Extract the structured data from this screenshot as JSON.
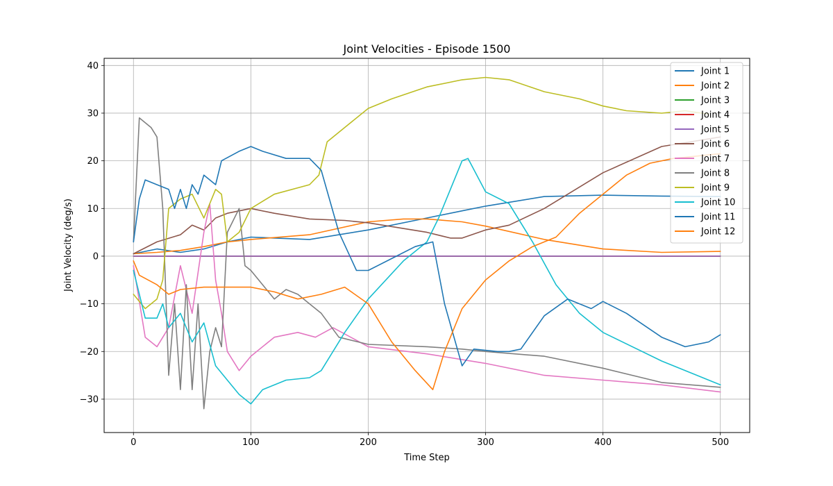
{
  "chart_data": {
    "type": "line",
    "title": "Joint Velocities - Episode 1500",
    "xlabel": "Time Step",
    "ylabel": "Joint Velocity (deg/s)",
    "xlim": [
      -25,
      525
    ],
    "ylim": [
      -37,
      41.5
    ],
    "xticks": [
      0,
      100,
      200,
      300,
      400,
      500
    ],
    "yticks": [
      -30,
      -20,
      -10,
      0,
      10,
      20,
      30,
      40
    ],
    "grid": true,
    "legend_position": "upper right",
    "series": [
      {
        "name": "Joint 1",
        "color": "#1f77b4",
        "points": [
          [
            0,
            0.5
          ],
          [
            20,
            1.5
          ],
          [
            40,
            0.8
          ],
          [
            60,
            1.5
          ],
          [
            80,
            3
          ],
          [
            100,
            4
          ],
          [
            150,
            3.5
          ],
          [
            200,
            5.5
          ],
          [
            250,
            8
          ],
          [
            280,
            9.5
          ],
          [
            300,
            10.5
          ],
          [
            350,
            12.5
          ],
          [
            400,
            12.8
          ],
          [
            450,
            12.6
          ],
          [
            500,
            12.5
          ]
        ]
      },
      {
        "name": "Joint 2",
        "color": "#ff7f0e",
        "points": [
          [
            0,
            0.5
          ],
          [
            20,
            0.8
          ],
          [
            40,
            1.2
          ],
          [
            60,
            2
          ],
          [
            80,
            3
          ],
          [
            100,
            3.5
          ],
          [
            150,
            4.5
          ],
          [
            200,
            7.2
          ],
          [
            230,
            7.8
          ],
          [
            250,
            7.8
          ],
          [
            280,
            7.2
          ],
          [
            300,
            6.3
          ],
          [
            350,
            3.5
          ],
          [
            400,
            1.5
          ],
          [
            450,
            0.8
          ],
          [
            500,
            1
          ]
        ]
      },
      {
        "name": "Joint 3",
        "color": "#2ca02c",
        "points": [
          [
            0,
            0
          ],
          [
            500,
            0
          ]
        ]
      },
      {
        "name": "Joint 4",
        "color": "#d62728",
        "points": [
          [
            0,
            0
          ],
          [
            500,
            0
          ]
        ]
      },
      {
        "name": "Joint 5",
        "color": "#9467bd",
        "points": [
          [
            0,
            0
          ],
          [
            500,
            0
          ]
        ]
      },
      {
        "name": "Joint 6",
        "color": "#8c564b",
        "points": [
          [
            0,
            0.5
          ],
          [
            20,
            3
          ],
          [
            40,
            4.5
          ],
          [
            50,
            6.5
          ],
          [
            60,
            5.5
          ],
          [
            70,
            8
          ],
          [
            80,
            9
          ],
          [
            100,
            10
          ],
          [
            120,
            9
          ],
          [
            150,
            7.8
          ],
          [
            180,
            7.5
          ],
          [
            200,
            7
          ],
          [
            250,
            5
          ],
          [
            270,
            3.8
          ],
          [
            280,
            3.8
          ],
          [
            300,
            5.5
          ],
          [
            320,
            6.5
          ],
          [
            350,
            10
          ],
          [
            400,
            17.5
          ],
          [
            450,
            23
          ],
          [
            500,
            25
          ]
        ]
      },
      {
        "name": "Joint 7",
        "color": "#e377c2",
        "points": [
          [
            0,
            -2
          ],
          [
            10,
            -17
          ],
          [
            20,
            -19
          ],
          [
            30,
            -15
          ],
          [
            40,
            -2
          ],
          [
            50,
            -12
          ],
          [
            60,
            5
          ],
          [
            65,
            11
          ],
          [
            70,
            -5
          ],
          [
            75,
            -12
          ],
          [
            80,
            -20
          ],
          [
            90,
            -24
          ],
          [
            100,
            -21
          ],
          [
            120,
            -17
          ],
          [
            140,
            -16
          ],
          [
            155,
            -17
          ],
          [
            170,
            -15
          ],
          [
            200,
            -19
          ],
          [
            250,
            -20.5
          ],
          [
            300,
            -22.5
          ],
          [
            350,
            -25
          ],
          [
            400,
            -26
          ],
          [
            450,
            -27
          ],
          [
            500,
            -28.5
          ]
        ]
      },
      {
        "name": "Joint 8",
        "color": "#7f7f7f",
        "points": [
          [
            0,
            3
          ],
          [
            5,
            29
          ],
          [
            10,
            28
          ],
          [
            15,
            27
          ],
          [
            20,
            25
          ],
          [
            25,
            10
          ],
          [
            30,
            -25
          ],
          [
            35,
            -10
          ],
          [
            40,
            -28
          ],
          [
            45,
            -6
          ],
          [
            50,
            -28
          ],
          [
            55,
            -10
          ],
          [
            60,
            -32
          ],
          [
            65,
            -20
          ],
          [
            70,
            -15
          ],
          [
            75,
            -19
          ],
          [
            80,
            5
          ],
          [
            90,
            10
          ],
          [
            95,
            -2
          ],
          [
            100,
            -3
          ],
          [
            110,
            -6
          ],
          [
            120,
            -9
          ],
          [
            130,
            -7
          ],
          [
            140,
            -8
          ],
          [
            150,
            -10
          ],
          [
            160,
            -12
          ],
          [
            175,
            -17
          ],
          [
            200,
            -18.5
          ],
          [
            250,
            -19
          ],
          [
            280,
            -19.5
          ],
          [
            300,
            -20
          ],
          [
            350,
            -21
          ],
          [
            400,
            -23.5
          ],
          [
            450,
            -26.5
          ],
          [
            500,
            -27.5
          ]
        ]
      },
      {
        "name": "Joint 9",
        "color": "#bcbd22",
        "points": [
          [
            0,
            -8
          ],
          [
            10,
            -11
          ],
          [
            20,
            -9
          ],
          [
            25,
            -5
          ],
          [
            30,
            10
          ],
          [
            40,
            12
          ],
          [
            50,
            13
          ],
          [
            60,
            8
          ],
          [
            70,
            14
          ],
          [
            75,
            13
          ],
          [
            80,
            3
          ],
          [
            90,
            5
          ],
          [
            100,
            10
          ],
          [
            120,
            13
          ],
          [
            150,
            15
          ],
          [
            158,
            17
          ],
          [
            165,
            24
          ],
          [
            180,
            27
          ],
          [
            200,
            31
          ],
          [
            220,
            33
          ],
          [
            250,
            35.5
          ],
          [
            280,
            37
          ],
          [
            300,
            37.5
          ],
          [
            320,
            37
          ],
          [
            350,
            34.5
          ],
          [
            380,
            33
          ],
          [
            400,
            31.5
          ],
          [
            420,
            30.5
          ],
          [
            450,
            30
          ],
          [
            470,
            30.5
          ],
          [
            490,
            29.8
          ]
        ]
      },
      {
        "name": "Joint 10",
        "color": "#17becf",
        "points": [
          [
            0,
            -3
          ],
          [
            10,
            -13
          ],
          [
            20,
            -13
          ],
          [
            25,
            -10
          ],
          [
            30,
            -15
          ],
          [
            40,
            -12
          ],
          [
            50,
            -18
          ],
          [
            60,
            -14
          ],
          [
            70,
            -23
          ],
          [
            80,
            -26
          ],
          [
            90,
            -29
          ],
          [
            100,
            -31
          ],
          [
            110,
            -28
          ],
          [
            130,
            -26
          ],
          [
            150,
            -25.5
          ],
          [
            160,
            -24
          ],
          [
            180,
            -16
          ],
          [
            200,
            -9
          ],
          [
            230,
            -1
          ],
          [
            250,
            3
          ],
          [
            260,
            8
          ],
          [
            270,
            14
          ],
          [
            280,
            20
          ],
          [
            285,
            20.5
          ],
          [
            300,
            13.5
          ],
          [
            320,
            11
          ],
          [
            340,
            3
          ],
          [
            360,
            -6
          ],
          [
            380,
            -12
          ],
          [
            400,
            -16
          ],
          [
            450,
            -22
          ],
          [
            500,
            -27
          ]
        ]
      },
      {
        "name": "Joint 11",
        "color": "#1f77b4",
        "points": [
          [
            0,
            3
          ],
          [
            5,
            12
          ],
          [
            10,
            16
          ],
          [
            20,
            15
          ],
          [
            30,
            14
          ],
          [
            35,
            10
          ],
          [
            40,
            14
          ],
          [
            45,
            10
          ],
          [
            50,
            15
          ],
          [
            55,
            13
          ],
          [
            60,
            17
          ],
          [
            70,
            15
          ],
          [
            75,
            20
          ],
          [
            90,
            22
          ],
          [
            100,
            23
          ],
          [
            110,
            22
          ],
          [
            130,
            20.5
          ],
          [
            150,
            20.5
          ],
          [
            160,
            18
          ],
          [
            175,
            5
          ],
          [
            190,
            -3
          ],
          [
            200,
            -3
          ],
          [
            220,
            -0.5
          ],
          [
            240,
            2
          ],
          [
            255,
            3
          ],
          [
            265,
            -10
          ],
          [
            280,
            -23
          ],
          [
            290,
            -19.5
          ],
          [
            310,
            -20
          ],
          [
            320,
            -20
          ],
          [
            330,
            -19.5
          ],
          [
            350,
            -12.5
          ],
          [
            370,
            -9
          ],
          [
            390,
            -11
          ],
          [
            400,
            -9.5
          ],
          [
            420,
            -12
          ],
          [
            450,
            -17
          ],
          [
            470,
            -19
          ],
          [
            490,
            -18
          ],
          [
            500,
            -16.5
          ]
        ]
      },
      {
        "name": "Joint 12",
        "color": "#ff7f0e",
        "points": [
          [
            0,
            -1
          ],
          [
            5,
            -4
          ],
          [
            20,
            -6
          ],
          [
            30,
            -8
          ],
          [
            40,
            -7
          ],
          [
            60,
            -6.5
          ],
          [
            80,
            -6.5
          ],
          [
            100,
            -6.5
          ],
          [
            120,
            -7.5
          ],
          [
            140,
            -9
          ],
          [
            160,
            -8
          ],
          [
            180,
            -6.5
          ],
          [
            200,
            -10
          ],
          [
            220,
            -18
          ],
          [
            240,
            -24
          ],
          [
            255,
            -28
          ],
          [
            265,
            -20
          ],
          [
            280,
            -11
          ],
          [
            300,
            -5
          ],
          [
            320,
            -1
          ],
          [
            340,
            2
          ],
          [
            360,
            4
          ],
          [
            380,
            9
          ],
          [
            400,
            13
          ],
          [
            420,
            17
          ],
          [
            440,
            19.5
          ],
          [
            460,
            20.5
          ],
          [
            480,
            21
          ],
          [
            500,
            21.5
          ]
        ]
      }
    ]
  }
}
